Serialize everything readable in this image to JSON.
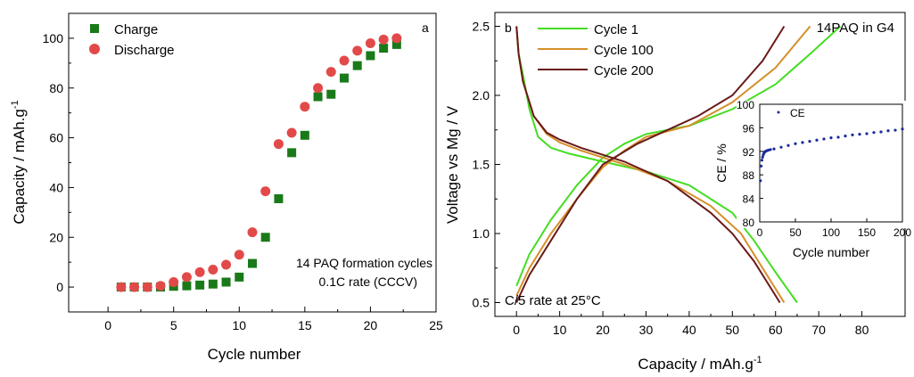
{
  "chart_data": [
    {
      "type": "scatter",
      "panel_label": "a",
      "xlabel": "Cycle number",
      "ylabel": "Capacity / mAh.g",
      "ylabel_sup": "-1",
      "xlim": [
        -3,
        25
      ],
      "ylim": [
        -10,
        110
      ],
      "xticks": [
        0,
        5,
        10,
        15,
        20,
        25
      ],
      "yticks": [
        0,
        20,
        40,
        60,
        80,
        100
      ],
      "annotations": [
        "14 PAQ formation cycles",
        "0.1C rate (CCCV)"
      ],
      "legend_position": "top-left",
      "x": [
        1,
        2,
        3,
        4,
        5,
        6,
        7,
        8,
        9,
        10,
        11,
        12,
        13,
        14,
        15,
        16,
        17,
        18,
        19,
        20,
        21,
        22
      ],
      "series": [
        {
          "name": "Charge",
          "marker": "square",
          "color": "#1a7a1a",
          "values": [
            0,
            0,
            0,
            0,
            0.3,
            0.5,
            0.8,
            1.2,
            2,
            4,
            9.5,
            20,
            35.5,
            54,
            61,
            76.5,
            77.5,
            84,
            89,
            93,
            96,
            97.5
          ]
        },
        {
          "name": "Discharge",
          "marker": "circle",
          "color": "#e24a4a",
          "values": [
            0,
            0,
            0,
            0.5,
            2,
            4,
            6,
            7,
            9,
            13,
            22,
            38.5,
            57.5,
            62,
            72.5,
            80,
            86.5,
            91,
            95,
            98,
            99.5,
            100
          ]
        }
      ]
    },
    {
      "type": "line",
      "panel_label": "b",
      "title": "14PAQ in G4",
      "xlabel": "Capacity / mAh.g",
      "xlabel_sup": "-1",
      "ylabel": "Voltage vs Mg / V",
      "xlim": [
        -5,
        90
      ],
      "ylim": [
        0.4,
        2.6
      ],
      "xticks": [
        0,
        10,
        20,
        30,
        40,
        50,
        60,
        70,
        80
      ],
      "yticks": [
        0.5,
        1.0,
        1.5,
        2.0,
        2.5
      ],
      "annotations": [
        "C/5 rate at 25°C"
      ],
      "legend_position": "top-left",
      "series": [
        {
          "name": "Cycle 1",
          "color": "#44dd22",
          "discharge": [
            [
              0,
              2.5
            ],
            [
              0.5,
              2.3
            ],
            [
              1.5,
              2.15
            ],
            [
              3,
              1.9
            ],
            [
              5,
              1.7
            ],
            [
              8,
              1.62
            ],
            [
              12,
              1.58
            ],
            [
              20,
              1.52
            ],
            [
              30,
              1.45
            ],
            [
              40,
              1.35
            ],
            [
              50,
              1.15
            ],
            [
              55,
              0.95
            ],
            [
              60,
              0.72
            ],
            [
              65,
              0.5
            ]
          ],
          "charge": [
            [
              0,
              0.62
            ],
            [
              3,
              0.85
            ],
            [
              8,
              1.1
            ],
            [
              14,
              1.35
            ],
            [
              20,
              1.55
            ],
            [
              25,
              1.65
            ],
            [
              30,
              1.72
            ],
            [
              40,
              1.78
            ],
            [
              50,
              1.9
            ],
            [
              60,
              2.08
            ],
            [
              68,
              2.3
            ],
            [
              75,
              2.5
            ]
          ]
        },
        {
          "name": "Cycle 100",
          "color": "#d4902a",
          "discharge": [
            [
              0,
              2.5
            ],
            [
              0.5,
              2.3
            ],
            [
              1.5,
              2.1
            ],
            [
              4,
              1.85
            ],
            [
              7,
              1.72
            ],
            [
              10,
              1.66
            ],
            [
              15,
              1.6
            ],
            [
              25,
              1.5
            ],
            [
              35,
              1.38
            ],
            [
              45,
              1.2
            ],
            [
              52,
              1.0
            ],
            [
              57,
              0.75
            ],
            [
              62,
              0.5
            ]
          ],
          "charge": [
            [
              0,
              0.55
            ],
            [
              3,
              0.75
            ],
            [
              8,
              1.0
            ],
            [
              14,
              1.25
            ],
            [
              20,
              1.48
            ],
            [
              25,
              1.6
            ],
            [
              30,
              1.7
            ],
            [
              40,
              1.78
            ],
            [
              50,
              1.95
            ],
            [
              60,
              2.2
            ],
            [
              68,
              2.5
            ]
          ]
        },
        {
          "name": "Cycle 200",
          "color": "#6a1a1a",
          "discharge": [
            [
              0,
              2.5
            ],
            [
              0.5,
              2.3
            ],
            [
              1.5,
              2.1
            ],
            [
              4,
              1.85
            ],
            [
              7,
              1.73
            ],
            [
              10,
              1.68
            ],
            [
              15,
              1.62
            ],
            [
              25,
              1.52
            ],
            [
              35,
              1.38
            ],
            [
              45,
              1.15
            ],
            [
              50,
              1.0
            ],
            [
              55,
              0.8
            ],
            [
              61,
              0.5
            ]
          ],
          "charge": [
            [
              0,
              0.5
            ],
            [
              3,
              0.7
            ],
            [
              8,
              0.95
            ],
            [
              14,
              1.25
            ],
            [
              20,
              1.5
            ],
            [
              28,
              1.65
            ],
            [
              35,
              1.75
            ],
            [
              42,
              1.85
            ],
            [
              50,
              2.0
            ],
            [
              57,
              2.25
            ],
            [
              62,
              2.5
            ]
          ]
        }
      ],
      "inset": {
        "type": "scatter",
        "xlabel": "Cycle number",
        "ylabel": "CE  / %",
        "xlim": [
          0,
          200
        ],
        "ylim": [
          80,
          100
        ],
        "xticks": [
          0,
          50,
          100,
          150,
          200
        ],
        "yticks": [
          80,
          84,
          88,
          92,
          96,
          100
        ],
        "legend": "CE",
        "color": "#1a2a9a",
        "x": [
          1,
          2,
          3,
          4,
          5,
          6,
          7,
          8,
          10,
          12,
          15,
          20,
          30,
          40,
          50,
          60,
          70,
          80,
          90,
          100,
          110,
          120,
          130,
          140,
          150,
          160,
          170,
          180,
          190,
          200
        ],
        "values": [
          87,
          89.5,
          90.5,
          91,
          91.4,
          91.7,
          91.9,
          92,
          92.1,
          92.2,
          92.3,
          92.4,
          92.7,
          93.0,
          93.3,
          93.5,
          93.7,
          93.9,
          94.1,
          94.3,
          94.4,
          94.6,
          94.8,
          94.9,
          95.0,
          95.2,
          95.3,
          95.5,
          95.6,
          95.8
        ]
      }
    }
  ]
}
